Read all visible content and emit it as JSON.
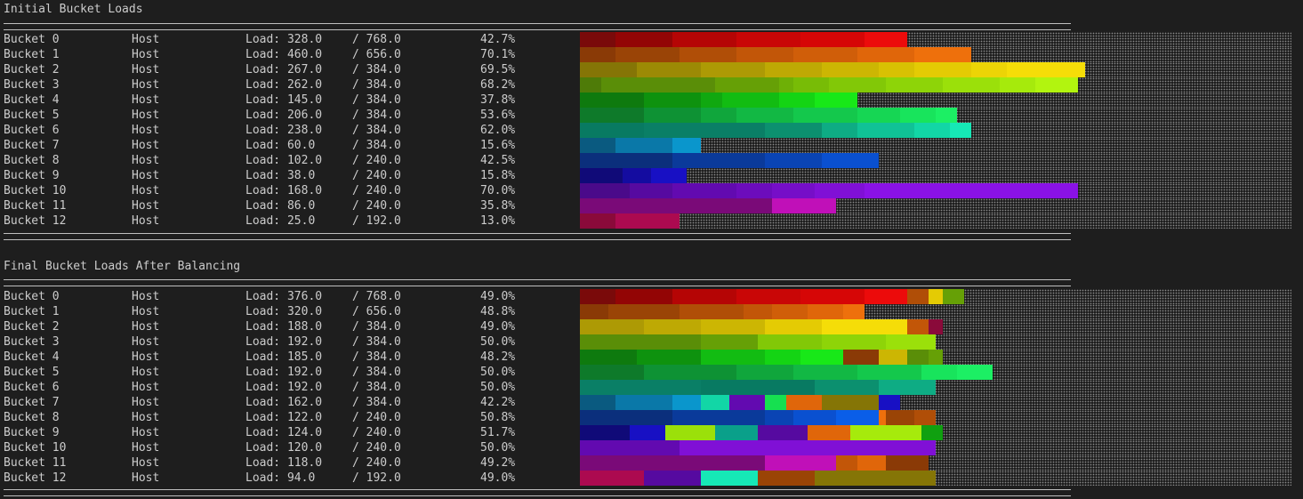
{
  "sections": [
    {
      "title": "Initial Bucket Loads",
      "rows": [
        {
          "name": "Bucket 0",
          "kind": "Host",
          "load": "Load: 328.0",
          "cap": "/ 768.0",
          "pct": "42.7%",
          "segments": [
            {
              "w": 0.05,
              "c": "#7a0a0a"
            },
            {
              "w": 0.08,
              "c": "#930505"
            },
            {
              "w": 0.09,
              "c": "#b50505"
            },
            {
              "w": 0.09,
              "c": "#c90606"
            },
            {
              "w": 0.09,
              "c": "#d60606"
            },
            {
              "w": 0.06,
              "c": "#ec0b0b"
            }
          ]
        },
        {
          "name": "Bucket 1",
          "kind": "Host",
          "load": "Load: 460.0",
          "cap": "/ 656.0",
          "pct": "70.1%",
          "segments": [
            {
              "w": 0.05,
              "c": "#8a3a06"
            },
            {
              "w": 0.09,
              "c": "#9a4406"
            },
            {
              "w": 0.08,
              "c": "#b04e07"
            },
            {
              "w": 0.08,
              "c": "#c25608"
            },
            {
              "w": 0.09,
              "c": "#d05e09"
            },
            {
              "w": 0.08,
              "c": "#e0660a"
            },
            {
              "w": 0.08,
              "c": "#ee700c"
            }
          ]
        },
        {
          "name": "Bucket 2",
          "kind": "Host",
          "load": "Load: 267.0",
          "cap": "/ 384.0",
          "pct": "69.5%",
          "segments": [
            {
              "w": 0.08,
              "c": "#857506"
            },
            {
              "w": 0.09,
              "c": "#9c8a05"
            },
            {
              "w": 0.09,
              "c": "#ad9a05"
            },
            {
              "w": 0.08,
              "c": "#bea904"
            },
            {
              "w": 0.08,
              "c": "#ccb603"
            },
            {
              "w": 0.05,
              "c": "#d8c103"
            },
            {
              "w": 0.08,
              "c": "#e4cb04"
            },
            {
              "w": 0.05,
              "c": "#ecd406"
            },
            {
              "w": 0.11,
              "c": "#f5dd08"
            }
          ]
        },
        {
          "name": "Bucket 3",
          "kind": "Host",
          "load": "Load: 262.0",
          "cap": "/ 384.0",
          "pct": "68.2%",
          "segments": [
            {
              "w": 0.03,
              "c": "#4e7b08"
            },
            {
              "w": 0.16,
              "c": "#5a8e08"
            },
            {
              "w": 0.09,
              "c": "#66a006"
            },
            {
              "w": 0.02,
              "c": "#6eb006"
            },
            {
              "w": 0.05,
              "c": "#78bc06"
            },
            {
              "w": 0.08,
              "c": "#82c807"
            },
            {
              "w": 0.08,
              "c": "#8ed408"
            },
            {
              "w": 0.08,
              "c": "#9be00a"
            },
            {
              "w": 0.05,
              "c": "#a6ea0c"
            },
            {
              "w": 0.06,
              "c": "#b2f40f"
            }
          ]
        },
        {
          "name": "Bucket 4",
          "kind": "Host",
          "load": "Load: 145.0",
          "cap": "/ 384.0",
          "pct": "37.8%",
          "segments": [
            {
              "w": 0.09,
              "c": "#0e7a0e"
            },
            {
              "w": 0.08,
              "c": "#0e920e"
            },
            {
              "w": 0.03,
              "c": "#10a810"
            },
            {
              "w": 0.08,
              "c": "#12bc12"
            },
            {
              "w": 0.05,
              "c": "#14d414"
            },
            {
              "w": 0.06,
              "c": "#18e818"
            }
          ]
        },
        {
          "name": "Bucket 5",
          "kind": "Host",
          "load": "Load: 206.0",
          "cap": "/ 384.0",
          "pct": "53.6%",
          "segments": [
            {
              "w": 0.09,
              "c": "#0e7a2a"
            },
            {
              "w": 0.08,
              "c": "#0e9234"
            },
            {
              "w": 0.05,
              "c": "#10a63c"
            },
            {
              "w": 0.08,
              "c": "#12b844"
            },
            {
              "w": 0.09,
              "c": "#14c84c"
            },
            {
              "w": 0.06,
              "c": "#16d654"
            },
            {
              "w": 0.05,
              "c": "#18e45c"
            },
            {
              "w": 0.03,
              "c": "#1cef64"
            }
          ]
        },
        {
          "name": "Bucket 6",
          "kind": "Host",
          "load": "Load: 238.0",
          "cap": "/ 384.0",
          "pct": "62.0%",
          "segments": [
            {
              "w": 0.09,
              "c": "#087a62"
            },
            {
              "w": 0.17,
              "c": "#0a7f66"
            },
            {
              "w": 0.08,
              "c": "#0c906f"
            },
            {
              "w": 0.05,
              "c": "#0eac84"
            },
            {
              "w": 0.08,
              "c": "#10c296"
            },
            {
              "w": 0.05,
              "c": "#12d6a6"
            },
            {
              "w": 0.03,
              "c": "#16e8b6"
            }
          ]
        },
        {
          "name": "Bucket 7",
          "kind": "Host",
          "load": "Load: 60.0",
          "cap": "/ 384.0",
          "pct": "15.6%",
          "segments": [
            {
              "w": 0.05,
              "c": "#0a5a80"
            },
            {
              "w": 0.08,
              "c": "#0a78a8"
            },
            {
              "w": 0.04,
              "c": "#0a96cc"
            }
          ]
        },
        {
          "name": "Bucket 8",
          "kind": "Host",
          "load": "Load: 102.0",
          "cap": "/ 240.0",
          "pct": "42.5%",
          "segments": [
            {
              "w": 0.13,
              "c": "#0b2f7c"
            },
            {
              "w": 0.13,
              "c": "#0a3a9a"
            },
            {
              "w": 0.08,
              "c": "#0a44b4"
            },
            {
              "w": 0.08,
              "c": "#0a50d0"
            }
          ]
        },
        {
          "name": "Bucket 9",
          "kind": "Host",
          "load": "Load: 38.0",
          "cap": "/ 240.0",
          "pct": "15.8%",
          "segments": [
            {
              "w": 0.06,
              "c": "#100a78"
            },
            {
              "w": 0.04,
              "c": "#140ca0"
            },
            {
              "w": 0.05,
              "c": "#1810c4"
            }
          ]
        },
        {
          "name": "Bucket 10",
          "kind": "Host",
          "load": "Load: 168.0",
          "cap": "/ 240.0",
          "pct": "70.0%",
          "segments": [
            {
              "w": 0.07,
              "c": "#4a0a8a"
            },
            {
              "w": 0.06,
              "c": "#560aa0"
            },
            {
              "w": 0.09,
              "c": "#620ab0"
            },
            {
              "w": 0.05,
              "c": "#6c0cbc"
            },
            {
              "w": 0.06,
              "c": "#760ec8"
            },
            {
              "w": 0.07,
              "c": "#8010d6"
            },
            {
              "w": 0.3,
              "c": "#8a12e6"
            }
          ]
        },
        {
          "name": "Bucket 11",
          "kind": "Host",
          "load": "Load: 86.0",
          "cap": "/ 240.0",
          "pct": "35.8%",
          "segments": [
            {
              "w": 0.27,
              "c": "#7a0a78"
            },
            {
              "w": 0.09,
              "c": "#c010b8"
            }
          ]
        },
        {
          "name": "Bucket 12",
          "kind": "Host",
          "load": "Load: 25.0",
          "cap": "/ 192.0",
          "pct": "13.0%",
          "segments": [
            {
              "w": 0.05,
              "c": "#8a0a3a"
            },
            {
              "w": 0.09,
              "c": "#ac0a50"
            }
          ]
        }
      ]
    },
    {
      "title": "Final Bucket Loads After Balancing",
      "rows": [
        {
          "name": "Bucket 0",
          "kind": "Host",
          "load": "Load: 376.0",
          "cap": "/ 768.0",
          "pct": "49.0%",
          "segments": [
            {
              "w": 0.05,
              "c": "#7a0a0a"
            },
            {
              "w": 0.08,
              "c": "#930505"
            },
            {
              "w": 0.09,
              "c": "#b50505"
            },
            {
              "w": 0.09,
              "c": "#c90606"
            },
            {
              "w": 0.09,
              "c": "#d60606"
            },
            {
              "w": 0.06,
              "c": "#ec0b0b"
            },
            {
              "w": 0.03,
              "c": "#b04e07"
            },
            {
              "w": 0.02,
              "c": "#e4cb04"
            },
            {
              "w": 0.03,
              "c": "#66a006"
            }
          ]
        },
        {
          "name": "Bucket 1",
          "kind": "Host",
          "load": "Load: 320.0",
          "cap": "/ 656.0",
          "pct": "48.8%",
          "segments": [
            {
              "w": 0.04,
              "c": "#8a3a06"
            },
            {
              "w": 0.1,
              "c": "#9a4406"
            },
            {
              "w": 0.09,
              "c": "#b04e07"
            },
            {
              "w": 0.04,
              "c": "#c25608"
            },
            {
              "w": 0.05,
              "c": "#d05e09"
            },
            {
              "w": 0.05,
              "c": "#e0660a"
            },
            {
              "w": 0.03,
              "c": "#ee700c"
            }
          ]
        },
        {
          "name": "Bucket 2",
          "kind": "Host",
          "load": "Load: 188.0",
          "cap": "/ 384.0",
          "pct": "49.0%",
          "segments": [
            {
              "w": 0.09,
              "c": "#ad9a05"
            },
            {
              "w": 0.08,
              "c": "#bea904"
            },
            {
              "w": 0.09,
              "c": "#ccb603"
            },
            {
              "w": 0.08,
              "c": "#e4cb04"
            },
            {
              "w": 0.12,
              "c": "#f5dd08"
            },
            {
              "w": 0.03,
              "c": "#c25608"
            },
            {
              "w": 0.02,
              "c": "#8a0a3a"
            }
          ]
        },
        {
          "name": "Bucket 3",
          "kind": "Host",
          "load": "Load: 192.0",
          "cap": "/ 384.0",
          "pct": "50.0%",
          "segments": [
            {
              "w": 0.17,
              "c": "#5a8e08"
            },
            {
              "w": 0.08,
              "c": "#66a006"
            },
            {
              "w": 0.09,
              "c": "#82c807"
            },
            {
              "w": 0.09,
              "c": "#8ed408"
            },
            {
              "w": 0.07,
              "c": "#9be00a"
            }
          ]
        },
        {
          "name": "Bucket 4",
          "kind": "Host",
          "load": "Load: 185.0",
          "cap": "/ 384.0",
          "pct": "48.2%",
          "segments": [
            {
              "w": 0.08,
              "c": "#0e7a0e"
            },
            {
              "w": 0.09,
              "c": "#0e920e"
            },
            {
              "w": 0.09,
              "c": "#12bc12"
            },
            {
              "w": 0.05,
              "c": "#14d414"
            },
            {
              "w": 0.06,
              "c": "#18e818"
            },
            {
              "w": 0.05,
              "c": "#8a3a06"
            },
            {
              "w": 0.04,
              "c": "#ccb603"
            },
            {
              "w": 0.03,
              "c": "#5a8e08"
            },
            {
              "w": 0.02,
              "c": "#66a006"
            }
          ]
        },
        {
          "name": "Bucket 5",
          "kind": "Host",
          "load": "Load: 192.0",
          "cap": "/ 384.0",
          "pct": "50.0%",
          "segments": [
            {
              "w": 0.09,
              "c": "#0e7a2a"
            },
            {
              "w": 0.13,
              "c": "#0e9234"
            },
            {
              "w": 0.08,
              "c": "#10a63c"
            },
            {
              "w": 0.09,
              "c": "#12b844"
            },
            {
              "w": 0.09,
              "c": "#14c84c"
            },
            {
              "w": 0.05,
              "c": "#18e45c"
            },
            {
              "w": 0.05,
              "c": "#1cef64"
            }
          ]
        },
        {
          "name": "Bucket 6",
          "kind": "Host",
          "load": "Load: 192.0",
          "cap": "/ 384.0",
          "pct": "50.0%",
          "segments": [
            {
              "w": 0.17,
              "c": "#0a7f66"
            },
            {
              "w": 0.16,
              "c": "#087a62"
            },
            {
              "w": 0.09,
              "c": "#0c906f"
            },
            {
              "w": 0.08,
              "c": "#0eac84"
            }
          ]
        },
        {
          "name": "Bucket 7",
          "kind": "Host",
          "load": "Load: 162.0",
          "cap": "/ 384.0",
          "pct": "42.2%",
          "segments": [
            {
              "w": 0.05,
              "c": "#0a5a80"
            },
            {
              "w": 0.08,
              "c": "#0a78a8"
            },
            {
              "w": 0.04,
              "c": "#0a96cc"
            },
            {
              "w": 0.04,
              "c": "#12d6a6"
            },
            {
              "w": 0.05,
              "c": "#620ab0"
            },
            {
              "w": 0.03,
              "c": "#16e050"
            },
            {
              "w": 0.05,
              "c": "#e0660a"
            },
            {
              "w": 0.08,
              "c": "#857506"
            },
            {
              "w": 0.03,
              "c": "#1810c4"
            }
          ]
        },
        {
          "name": "Bucket 8",
          "kind": "Host",
          "load": "Load: 122.0",
          "cap": "/ 240.0",
          "pct": "50.8%",
          "segments": [
            {
              "w": 0.13,
              "c": "#0b2f7c"
            },
            {
              "w": 0.13,
              "c": "#0a3a9a"
            },
            {
              "w": 0.04,
              "c": "#0a44b4"
            },
            {
              "w": 0.06,
              "c": "#0a50d0"
            },
            {
              "w": 0.06,
              "c": "#0a5ee8"
            },
            {
              "w": 0.01,
              "c": "#ee700c"
            },
            {
              "w": 0.04,
              "c": "#9a4406"
            },
            {
              "w": 0.03,
              "c": "#b04e07"
            }
          ]
        },
        {
          "name": "Bucket 9",
          "kind": "Host",
          "load": "Load: 124.0",
          "cap": "/ 240.0",
          "pct": "51.7%",
          "segments": [
            {
              "w": 0.07,
              "c": "#100a78"
            },
            {
              "w": 0.05,
              "c": "#1810c4"
            },
            {
              "w": 0.07,
              "c": "#9be00a"
            },
            {
              "w": 0.06,
              "c": "#0aa08a"
            },
            {
              "w": 0.07,
              "c": "#560aa0"
            },
            {
              "w": 0.06,
              "c": "#e0660a"
            },
            {
              "w": 0.1,
              "c": "#a6ea0c"
            },
            {
              "w": 0.03,
              "c": "#10a010"
            }
          ]
        },
        {
          "name": "Bucket 10",
          "kind": "Host",
          "load": "Load: 120.0",
          "cap": "/ 240.0",
          "pct": "50.0%",
          "segments": [
            {
              "w": 0.14,
              "c": "#620ab0"
            },
            {
              "w": 0.36,
              "c": "#8010d6"
            }
          ]
        },
        {
          "name": "Bucket 11",
          "kind": "Host",
          "load": "Load: 118.0",
          "cap": "/ 240.0",
          "pct": "49.2%",
          "segments": [
            {
              "w": 0.26,
              "c": "#7a0a78"
            },
            {
              "w": 0.1,
              "c": "#c010b8"
            },
            {
              "w": 0.03,
              "c": "#c25608"
            },
            {
              "w": 0.04,
              "c": "#e0660a"
            },
            {
              "w": 0.06,
              "c": "#8a3a06"
            }
          ]
        },
        {
          "name": "Bucket 12",
          "kind": "Host",
          "load": "Load: 94.0",
          "cap": "/ 192.0",
          "pct": "49.0%",
          "segments": [
            {
              "w": 0.09,
              "c": "#ac0a50"
            },
            {
              "w": 0.08,
              "c": "#560aa0"
            },
            {
              "w": 0.08,
              "c": "#16e8b6"
            },
            {
              "w": 0.08,
              "c": "#9a4406"
            },
            {
              "w": 0.17,
              "c": "#857506"
            }
          ]
        }
      ]
    }
  ]
}
